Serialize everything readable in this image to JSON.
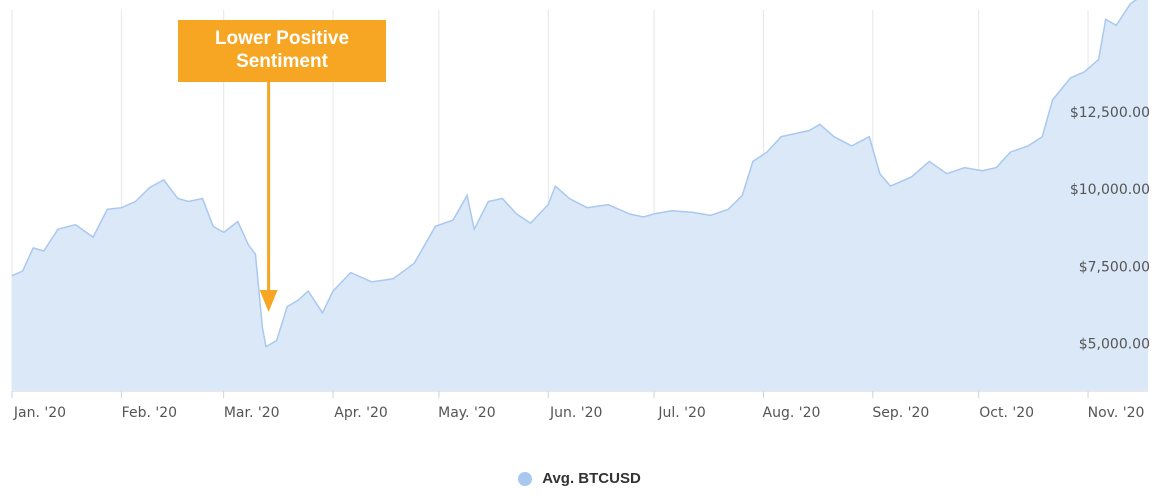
{
  "chart_data": {
    "type": "area",
    "title": "",
    "xlabel": "",
    "ylabel": "",
    "legend": {
      "position": "bottom-center",
      "entries": [
        "Avg. BTCUSD"
      ]
    },
    "colors": {
      "area_fill": "#dbe8f8",
      "area_line": "#a9c8f0",
      "volume_bars": "#8fb6ea",
      "annotation": "#f6a623",
      "grid": "#e6e6e6"
    },
    "grid": true,
    "y_axis": {
      "position": "right",
      "ticks": [
        "$5,000.00",
        "$7,500.00",
        "$10,000.00",
        "$12,500.00"
      ],
      "tick_values": [
        5000,
        7500,
        10000,
        12500
      ],
      "ylim": [
        3500,
        15800
      ]
    },
    "x_axis": {
      "ticks": [
        "Jan. '20",
        "Feb. '20",
        "Mar. '20",
        "Apr. '20",
        "May. '20",
        "Jun. '20",
        "Jul. '20",
        "Aug. '20",
        "Sep. '20",
        "Oct. '20",
        "Nov. '20"
      ],
      "tick_dates": [
        "2020-01-01",
        "2020-02-01",
        "2020-03-01",
        "2020-04-01",
        "2020-05-01",
        "2020-06-01",
        "2020-07-01",
        "2020-08-01",
        "2020-09-01",
        "2020-10-01",
        "2020-11-01"
      ],
      "xlim": [
        "2020-01-01",
        "2020-11-18"
      ]
    },
    "series": [
      {
        "name": "Avg. BTCUSD",
        "points": [
          [
            "2020-01-01",
            7200
          ],
          [
            "2020-01-04",
            7350
          ],
          [
            "2020-01-07",
            8100
          ],
          [
            "2020-01-10",
            8000
          ],
          [
            "2020-01-14",
            8700
          ],
          [
            "2020-01-19",
            8850
          ],
          [
            "2020-01-24",
            8450
          ],
          [
            "2020-01-28",
            9350
          ],
          [
            "2020-02-01",
            9400
          ],
          [
            "2020-02-05",
            9600
          ],
          [
            "2020-02-09",
            10050
          ],
          [
            "2020-02-13",
            10300
          ],
          [
            "2020-02-17",
            9700
          ],
          [
            "2020-02-20",
            9600
          ],
          [
            "2020-02-24",
            9700
          ],
          [
            "2020-02-27",
            8800
          ],
          [
            "2020-03-01",
            8600
          ],
          [
            "2020-03-05",
            8950
          ],
          [
            "2020-03-08",
            8200
          ],
          [
            "2020-03-10",
            7900
          ],
          [
            "2020-03-12",
            5500
          ],
          [
            "2020-03-13",
            4900
          ],
          [
            "2020-03-16",
            5100
          ],
          [
            "2020-03-19",
            6200
          ],
          [
            "2020-03-22",
            6400
          ],
          [
            "2020-03-25",
            6700
          ],
          [
            "2020-03-29",
            6000
          ],
          [
            "2020-04-01",
            6700
          ],
          [
            "2020-04-06",
            7300
          ],
          [
            "2020-04-12",
            7000
          ],
          [
            "2020-04-18",
            7100
          ],
          [
            "2020-04-24",
            7600
          ],
          [
            "2020-04-30",
            8800
          ],
          [
            "2020-05-05",
            9000
          ],
          [
            "2020-05-09",
            9800
          ],
          [
            "2020-05-11",
            8700
          ],
          [
            "2020-05-15",
            9600
          ],
          [
            "2020-05-19",
            9700
          ],
          [
            "2020-05-23",
            9200
          ],
          [
            "2020-05-27",
            8900
          ],
          [
            "2020-06-01",
            9500
          ],
          [
            "2020-06-03",
            10100
          ],
          [
            "2020-06-07",
            9700
          ],
          [
            "2020-06-12",
            9400
          ],
          [
            "2020-06-18",
            9500
          ],
          [
            "2020-06-24",
            9200
          ],
          [
            "2020-06-28",
            9100
          ],
          [
            "2020-07-01",
            9200
          ],
          [
            "2020-07-06",
            9300
          ],
          [
            "2020-07-12",
            9250
          ],
          [
            "2020-07-17",
            9150
          ],
          [
            "2020-07-22",
            9350
          ],
          [
            "2020-07-26",
            9800
          ],
          [
            "2020-07-29",
            10900
          ],
          [
            "2020-08-02",
            11200
          ],
          [
            "2020-08-06",
            11700
          ],
          [
            "2020-08-10",
            11800
          ],
          [
            "2020-08-14",
            11900
          ],
          [
            "2020-08-17",
            12100
          ],
          [
            "2020-08-21",
            11700
          ],
          [
            "2020-08-26",
            11400
          ],
          [
            "2020-08-31",
            11700
          ],
          [
            "2020-09-03",
            10500
          ],
          [
            "2020-09-06",
            10100
          ],
          [
            "2020-09-12",
            10400
          ],
          [
            "2020-09-17",
            10900
          ],
          [
            "2020-09-22",
            10500
          ],
          [
            "2020-09-27",
            10700
          ],
          [
            "2020-10-02",
            10600
          ],
          [
            "2020-10-06",
            10700
          ],
          [
            "2020-10-10",
            11200
          ],
          [
            "2020-10-15",
            11400
          ],
          [
            "2020-10-19",
            11700
          ],
          [
            "2020-10-22",
            12900
          ],
          [
            "2020-10-27",
            13600
          ],
          [
            "2020-10-31",
            13800
          ],
          [
            "2020-11-04",
            14200
          ],
          [
            "2020-11-06",
            15500
          ],
          [
            "2020-11-09",
            15300
          ],
          [
            "2020-11-13",
            16000
          ],
          [
            "2020-11-18",
            16400
          ]
        ]
      }
    ],
    "annotations": [
      {
        "label": "Lower Positive\nSentiment",
        "date": "2020-03-16"
      }
    ]
  }
}
